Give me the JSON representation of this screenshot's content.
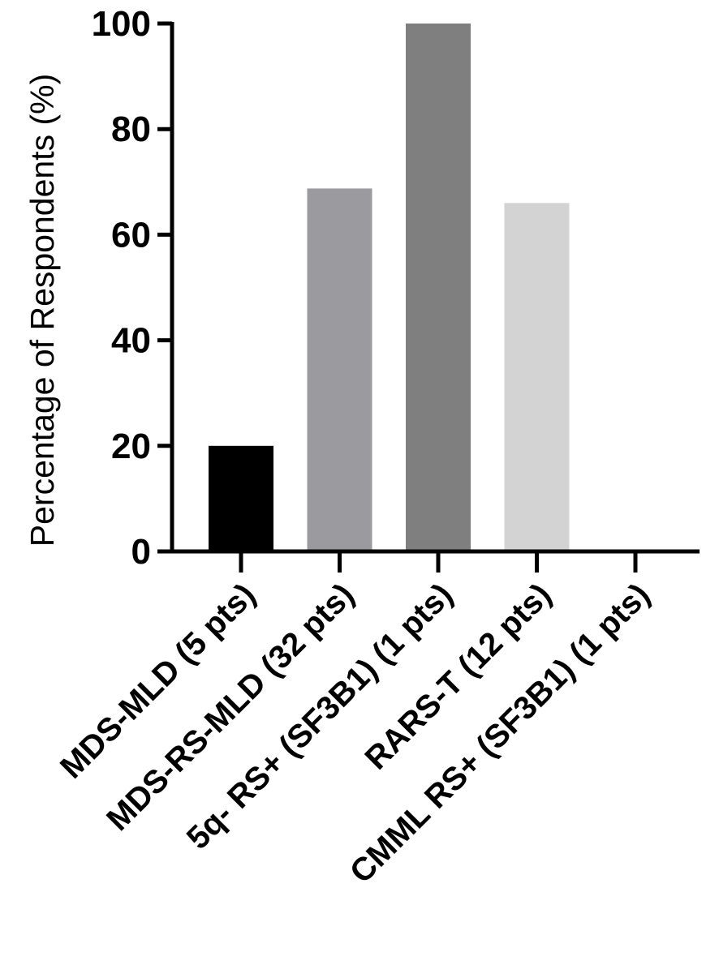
{
  "chart_data": {
    "type": "bar",
    "title": "",
    "xlabel": "",
    "ylabel": "Percentage of Respondents (%)",
    "ylim": [
      0,
      100
    ],
    "yticks": [
      0,
      20,
      40,
      60,
      80,
      100
    ],
    "yticklabels": [
      "0",
      "20",
      "40",
      "60",
      "80",
      "100"
    ],
    "grid": false,
    "legend": "none",
    "categories": [
      "MDS-MLD (5 pts)",
      "MDS-RS-MLD (32 pts)",
      "5q- RS+ (SF3B1) (1 pts)",
      "RARS-T (12 pts)",
      "CMML RS+ (SF3B1) (1 pts)"
    ],
    "values": [
      20,
      68.75,
      100,
      66,
      0
    ],
    "colors": [
      "#000000",
      "#9b9b9f",
      "#7f7f7f",
      "#d3d3d3",
      "#bfbfbf"
    ]
  }
}
